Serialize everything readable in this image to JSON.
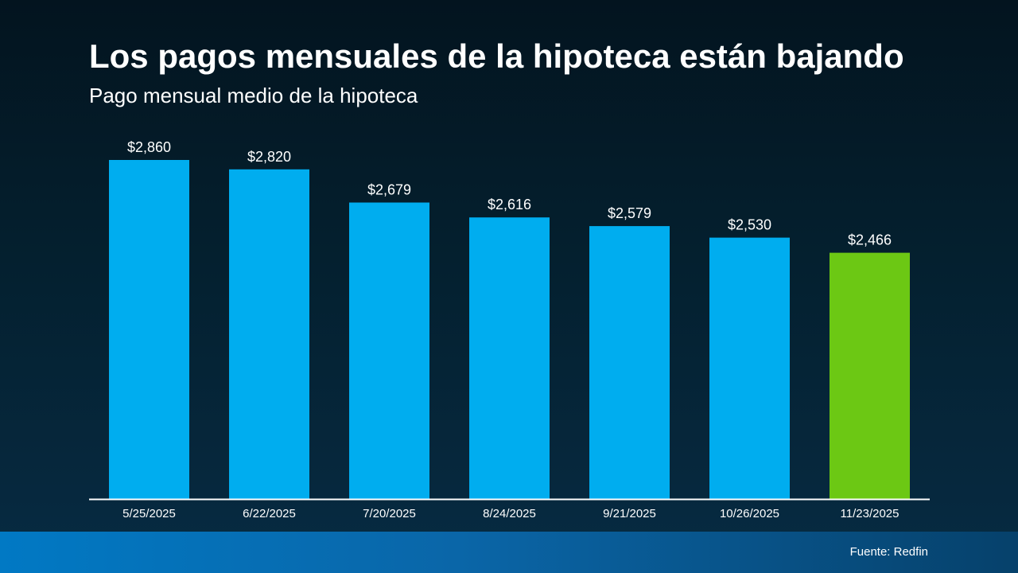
{
  "header": {
    "title": "Los pagos mensuales de la hipoteca están bajando",
    "subtitle": "Pago mensual medio de la hipoteca"
  },
  "footer": {
    "source": "Fuente: Redfin"
  },
  "colors": {
    "bar": "#00adef",
    "highlight": "#6cc814",
    "axis": "#ffffff",
    "text": "#ffffff"
  },
  "chart_data": {
    "type": "bar",
    "title": "Los pagos mensuales de la hipoteca están bajando",
    "subtitle": "Pago mensual medio de la hipoteca",
    "categories": [
      "5/25/2025",
      "6/22/2025",
      "7/20/2025",
      "8/24/2025",
      "9/21/2025",
      "10/26/2025",
      "11/23/2025"
    ],
    "values": [
      2860,
      2820,
      2679,
      2616,
      2579,
      2530,
      2466
    ],
    "data_labels": [
      "$2,860",
      "$2,820",
      "$2,679",
      "$2,616",
      "$2,579",
      "$2,530",
      "$2,466"
    ],
    "highlight_index": 6,
    "xlabel": "",
    "ylabel": "",
    "ylim": [
      1420,
      2860
    ],
    "grid": false,
    "legend": "none"
  }
}
